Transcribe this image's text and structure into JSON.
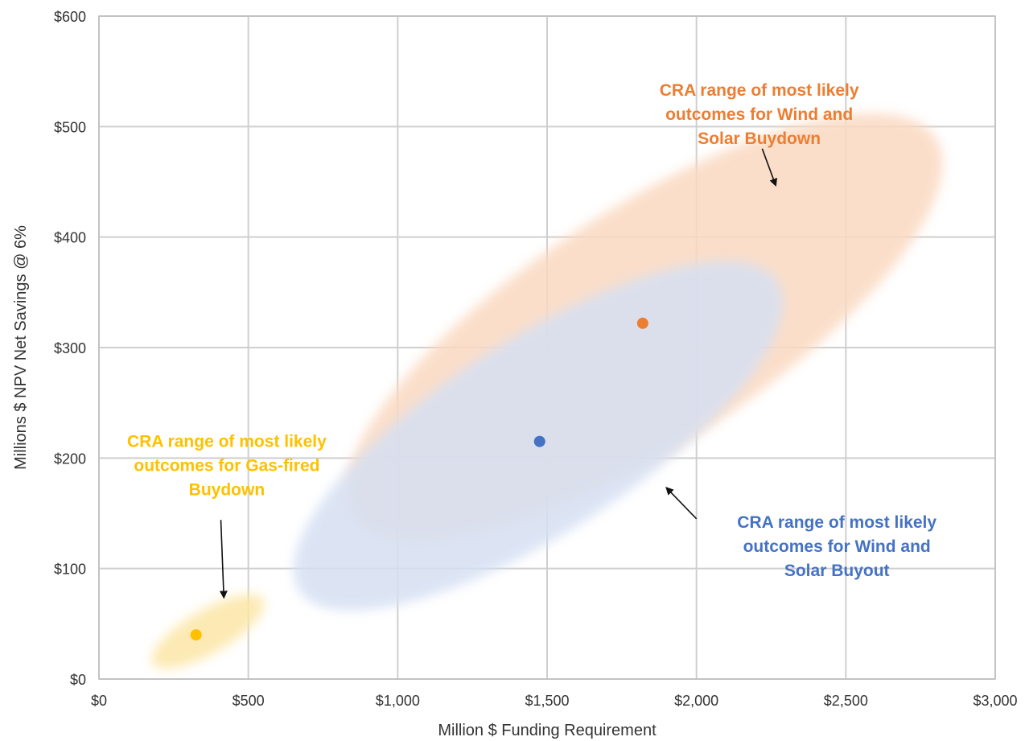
{
  "chart_data": {
    "type": "scatter",
    "title": "",
    "xlabel": "Million $ Funding Requirement",
    "ylabel": "Millions $ NPV Net Savings @ 6%",
    "xlim": [
      0,
      3000
    ],
    "ylim": [
      0,
      600
    ],
    "grid": true,
    "x_ticks": [
      0,
      500,
      1000,
      1500,
      2000,
      2500,
      3000
    ],
    "x_tick_labels": [
      "$0",
      "$500",
      "$1,000",
      "$1,500",
      "$2,000",
      "$2,500",
      "$3,000"
    ],
    "y_ticks": [
      0,
      100,
      200,
      300,
      400,
      500,
      600
    ],
    "y_tick_labels": [
      "$0",
      "$100",
      "$200",
      "$300",
      "$400",
      "$500",
      "$600"
    ],
    "series": [
      {
        "color": "#ED7D31",
        "points": [
          {
            "x": 1820,
            "y": 322
          }
        ]
      },
      {
        "color": "#4472C4",
        "points": [
          {
            "x": 1475,
            "y": 215
          }
        ]
      },
      {
        "color": "#FFC000",
        "points": [
          {
            "x": 325,
            "y": 40
          }
        ]
      }
    ],
    "ranges": [
      {
        "color": "#FAD9C1",
        "x_min": 850,
        "x_max": 2800,
        "y_min": 145,
        "y_max": 490
      },
      {
        "color": "#D6E0F3",
        "x_min": 670,
        "x_max": 2270,
        "y_min": 80,
        "y_max": 360
      },
      {
        "color": "#FCE6A6",
        "x_min": 180,
        "x_max": 550,
        "y_min": 14,
        "y_max": 72
      }
    ],
    "annotations": [
      {
        "lines": [
          "CRA range of most likely",
          "outcomes for Wind and",
          "Solar Buydown"
        ],
        "color": "#ED7D31",
        "text_x": 2210,
        "text_y": 528,
        "arrow_from": [
          2220,
          480
        ],
        "arrow_to": [
          2265,
          447
        ]
      },
      {
        "lines": [
          "CRA range of most likely",
          "outcomes for Wind and",
          "Solar Buyout"
        ],
        "color": "#4472C4",
        "text_x": 2470,
        "text_y": 137,
        "arrow_from": [
          2000,
          145
        ],
        "arrow_to": [
          1900,
          173
        ]
      },
      {
        "lines": [
          "CRA range of most likely",
          "outcomes for Gas-fired",
          "Buydown"
        ],
        "color": "#FFC000",
        "text_x": 428,
        "text_y": 210,
        "arrow_from": [
          408,
          144
        ],
        "arrow_to": [
          418,
          74
        ]
      }
    ]
  }
}
